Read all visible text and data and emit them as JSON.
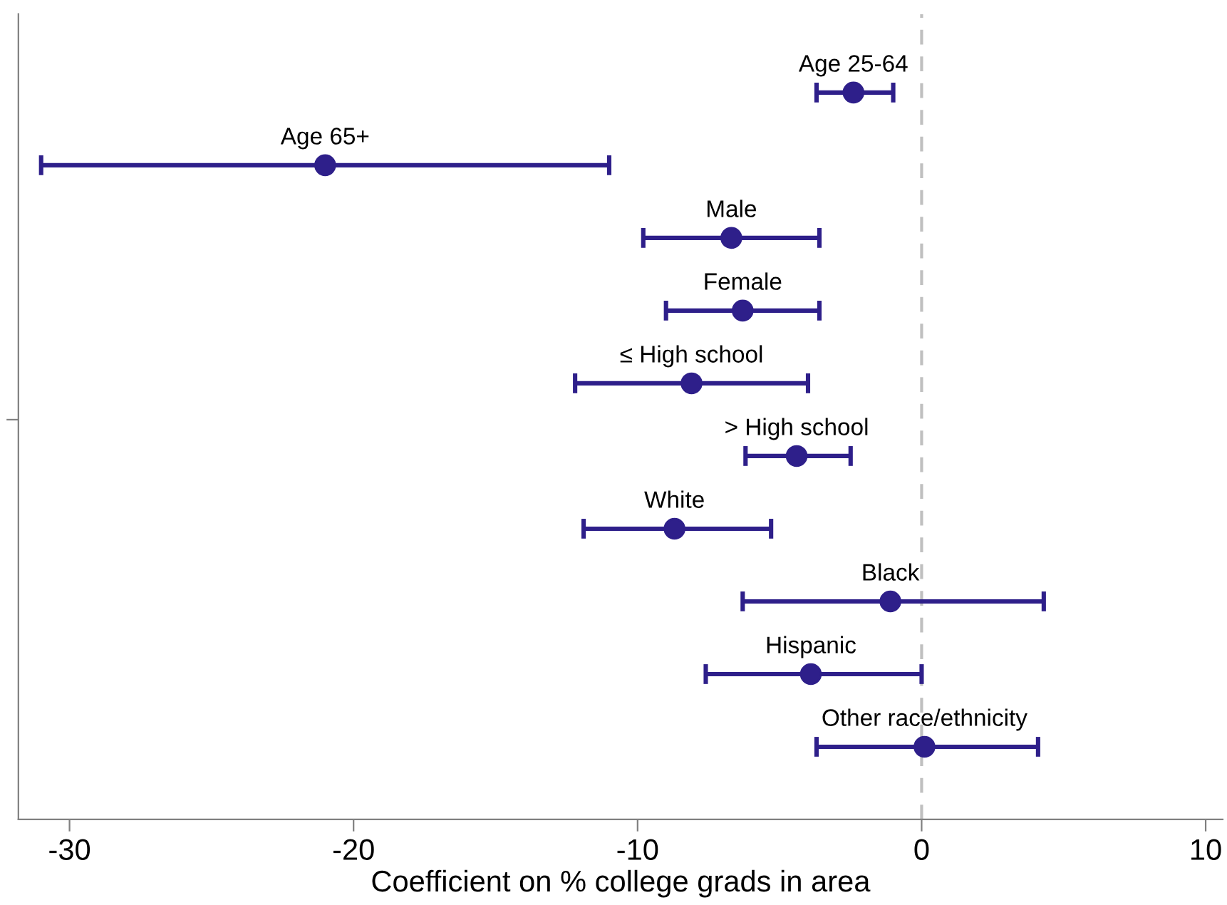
{
  "chart_data": {
    "type": "scatter",
    "orientation": "horizontal",
    "xlabel": "Coefficient on % college grads in area",
    "categories": [
      "Age 25-64",
      "Age 65+",
      "Male",
      "Female",
      "≤ High school",
      "> High school",
      "White",
      "Black",
      "Hispanic",
      "Other race/ethnicity"
    ],
    "values": [
      -2.4,
      -21.0,
      -6.7,
      -6.3,
      -8.1,
      -4.4,
      -8.7,
      -1.1,
      -3.9,
      0.1
    ],
    "errors": [
      [
        -3.7,
        -1.0
      ],
      [
        -31.0,
        -11.0
      ],
      [
        -9.8,
        -3.6
      ],
      [
        -9.0,
        -3.6
      ],
      [
        -12.2,
        -4.0
      ],
      [
        -6.2,
        -2.5
      ],
      [
        -11.9,
        -5.3
      ],
      [
        -6.3,
        4.3
      ],
      [
        -7.6,
        0.0
      ],
      [
        -3.7,
        4.1
      ]
    ],
    "color": "#2e1f8a",
    "marker": "circle",
    "xlim": [
      -31.8,
      10.6
    ],
    "xticks": [
      -30,
      -20,
      -10,
      0,
      10
    ],
    "tick_labels": "x",
    "grid": false,
    "legend": false,
    "ref_lines": [
      {
        "axis": "x",
        "value": 0,
        "color": "#c0c0c0",
        "line_style": "dashed"
      }
    ]
  }
}
